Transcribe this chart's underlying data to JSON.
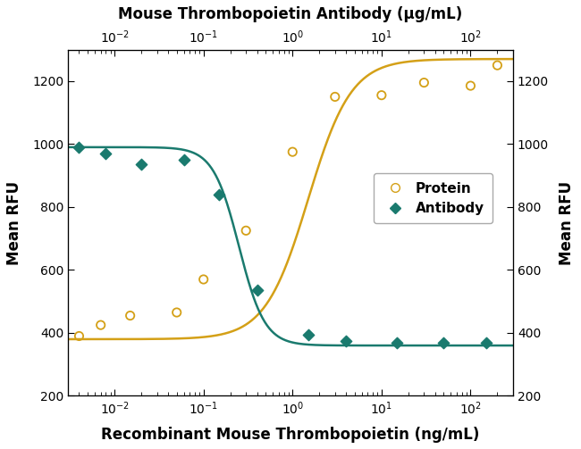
{
  "title_top": "Mouse Thrombopoietin Antibody (μg/mL)",
  "xlabel": "Recombinant Mouse Thrombopoietin (ng/mL)",
  "ylabel_left": "Mean RFU",
  "ylabel_right": "Mean RFU",
  "ylim": [
    200,
    1300
  ],
  "yticks": [
    200,
    400,
    600,
    800,
    1000,
    1200
  ],
  "background_color": "#ffffff",
  "protein_color": "#d4a017",
  "antibody_color": "#1a7a6e",
  "protein_scatter_x": [
    0.004,
    0.007,
    0.015,
    0.05,
    0.1,
    0.3,
    1.0,
    3.0,
    10,
    30,
    100,
    200
  ],
  "protein_scatter_y": [
    390,
    425,
    455,
    465,
    570,
    725,
    975,
    1150,
    1155,
    1195,
    1185,
    1250
  ],
  "antibody_scatter_x": [
    0.004,
    0.008,
    0.02,
    0.06,
    0.15,
    0.4,
    1.5,
    4.0,
    15,
    50,
    150
  ],
  "antibody_scatter_y": [
    990,
    970,
    935,
    950,
    840,
    535,
    395,
    375,
    370,
    370,
    370
  ],
  "x_bottom_min": 0.003,
  "x_bottom_max": 300,
  "x_top_min": 0.003,
  "x_top_max": 300,
  "legend_labels": [
    "Protein",
    "Antibody"
  ],
  "protein_fit": [
    380,
    1270,
    1.5,
    1.8
  ],
  "antibody_fit": [
    990,
    360,
    0.25,
    3.0
  ]
}
